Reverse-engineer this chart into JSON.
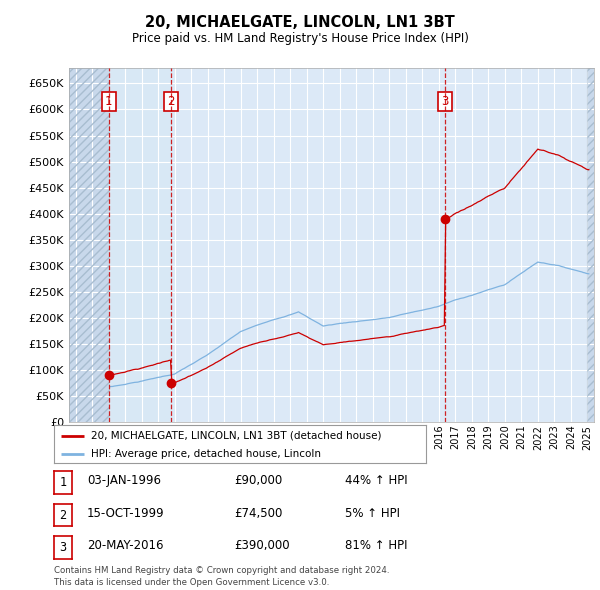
{
  "title1": "20, MICHAELGATE, LINCOLN, LN1 3BT",
  "title2": "Price paid vs. HM Land Registry's House Price Index (HPI)",
  "ylim": [
    0,
    680000
  ],
  "yticks": [
    0,
    50000,
    100000,
    150000,
    200000,
    250000,
    300000,
    350000,
    400000,
    450000,
    500000,
    550000,
    600000,
    650000
  ],
  "ytick_labels": [
    "£0",
    "£50K",
    "£100K",
    "£150K",
    "£200K",
    "£250K",
    "£300K",
    "£350K",
    "£400K",
    "£450K",
    "£500K",
    "£550K",
    "£600K",
    "£650K"
  ],
  "xlim_start": 1993.6,
  "xlim_end": 2025.4,
  "bg_color": "#dce9f7",
  "hatch_bg_color": "#c8d8eb",
  "grid_color": "#ffffff",
  "sale_line_color": "#cc0000",
  "hpi_line_color": "#7fb3e0",
  "sale1_year": 1996.01,
  "sale1_price": 90000,
  "sale2_year": 1999.79,
  "sale2_price": 74500,
  "sale3_year": 2016.38,
  "sale3_price": 390000,
  "legend_label1": "20, MICHAELGATE, LINCOLN, LN1 3BT (detached house)",
  "legend_label2": "HPI: Average price, detached house, Lincoln",
  "table_rows": [
    {
      "num": "1",
      "date": "03-JAN-1996",
      "price": "£90,000",
      "hpi": "44% ↑ HPI"
    },
    {
      "num": "2",
      "date": "15-OCT-1999",
      "price": "£74,500",
      "hpi": "5% ↑ HPI"
    },
    {
      "num": "3",
      "date": "20-MAY-2016",
      "price": "£390,000",
      "hpi": "81% ↑ HPI"
    }
  ],
  "footnote": "Contains HM Land Registry data © Crown copyright and database right 2024.\nThis data is licensed under the Open Government Licence v3.0."
}
